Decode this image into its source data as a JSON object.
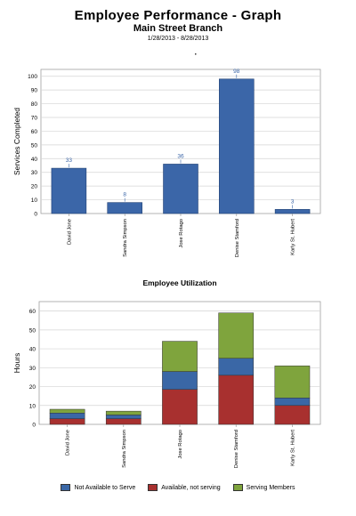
{
  "header": {
    "title": "Employee Performance - Graph",
    "subtitle": "Main Street Branch",
    "date_range": "1/28/2013 - 8/28/2013"
  },
  "chart_data": [
    {
      "type": "bar",
      "title": "Services Completed",
      "xlabel": "",
      "ylabel": "Services Completed",
      "ylim": [
        0,
        105
      ],
      "yticks": [
        0,
        10,
        20,
        30,
        40,
        50,
        60,
        70,
        80,
        90,
        100
      ],
      "categories": [
        "David Jone",
        "Sandra Simpson",
        "Jose Rotago",
        "Denise Stamford",
        "Karly St. Hubert"
      ],
      "values": [
        33,
        8,
        36,
        98,
        3
      ],
      "data_labels": [
        "33",
        "8",
        "36",
        "98",
        "3"
      ],
      "grid": true,
      "color": "#3b66a8"
    },
    {
      "type": "bar",
      "stacked": true,
      "title": "Employee Utilization",
      "xlabel": "",
      "ylabel": "Hours",
      "ylim": [
        0,
        65
      ],
      "yticks": [
        0,
        10,
        20,
        30,
        40,
        50,
        60
      ],
      "categories": [
        "David Jone",
        "Sandra Simpson",
        "Jose Rotago",
        "Denise Stamford",
        "Karly St. Hubert"
      ],
      "series": [
        {
          "name": "Available, not serving",
          "color": "#a8302f",
          "values": [
            3,
            3,
            18.5,
            26,
            10
          ]
        },
        {
          "name": "Not Available to Serve",
          "color": "#3a67a6",
          "values": [
            3,
            2,
            9.5,
            9,
            4
          ]
        },
        {
          "name": "Serving Members",
          "color": "#7fa43d",
          "values": [
            2,
            2,
            16,
            24,
            17
          ]
        }
      ],
      "legend": {
        "placement": "bottom",
        "order": [
          "Not Available to Serve",
          "Available, not serving",
          "Serving Members"
        ]
      },
      "grid": true
    }
  ]
}
